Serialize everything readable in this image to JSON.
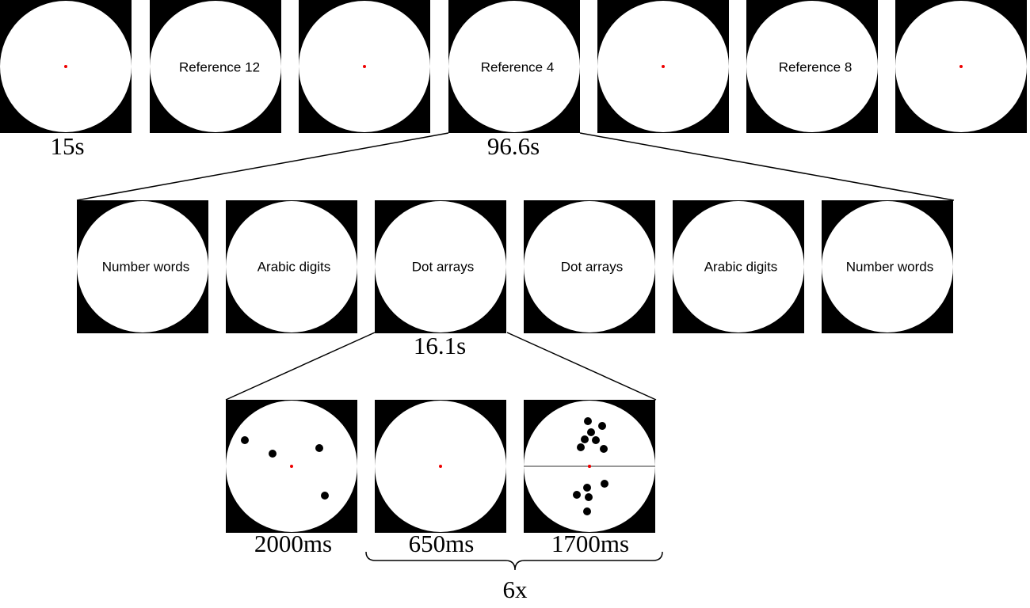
{
  "top_row": {
    "labels": [
      "Reference 12",
      "Reference 4",
      "Reference 8"
    ],
    "durations": [
      "15s",
      "96.6s"
    ]
  },
  "middle_row": {
    "labels": [
      "Number words",
      "Arabic digits",
      "Dot arrays",
      "Dot arrays",
      "Arabic digits",
      "Number words"
    ],
    "duration": "16.1s"
  },
  "bottom_row": {
    "durations": [
      "2000ms",
      "650ms",
      "1700ms"
    ],
    "repeat": "6x"
  }
}
